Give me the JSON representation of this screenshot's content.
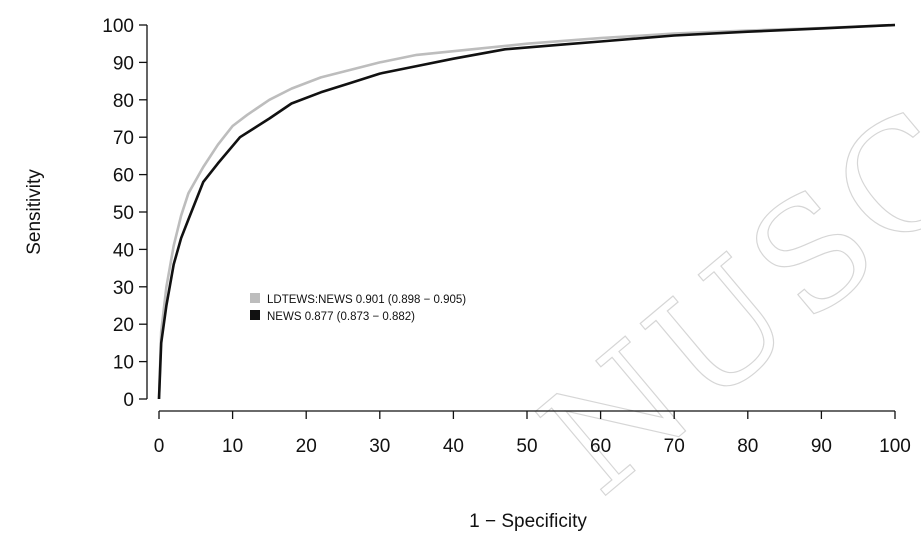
{
  "watermark": "NUSC",
  "chart_data": {
    "type": "line",
    "xlabel": "1 − Specificity",
    "ylabel": "Sensitivity",
    "xlim": [
      0,
      100
    ],
    "ylim": [
      0,
      100
    ],
    "xticks": [
      0,
      10,
      20,
      30,
      40,
      50,
      60,
      70,
      80,
      90,
      100
    ],
    "yticks": [
      0,
      10,
      20,
      30,
      40,
      50,
      60,
      70,
      80,
      90,
      100
    ],
    "grid": false,
    "legend_position": "center-left",
    "series": [
      {
        "name": "LDTEWS:NEWS 0.901 (0.898 − 0.905)",
        "color": "#bdbdbd",
        "x": [
          0,
          0.3,
          1,
          2,
          3,
          4,
          6,
          8,
          10,
          12,
          15,
          18,
          22,
          26,
          30,
          35,
          40,
          50,
          60,
          70,
          80,
          90,
          100
        ],
        "y": [
          0,
          18,
          30,
          41,
          49,
          55,
          62,
          68,
          73,
          76,
          80,
          83,
          86,
          88,
          90,
          92,
          93,
          95,
          96.5,
          97.7,
          98.5,
          99.2,
          100
        ]
      },
      {
        "name": "NEWS 0.877 (0.873 − 0.882)",
        "color": "#111111",
        "x": [
          0,
          0.3,
          1,
          2,
          3,
          4,
          6,
          8,
          11,
          15,
          18,
          22,
          26,
          30,
          35,
          40,
          47,
          55,
          60,
          70,
          80,
          90,
          100
        ],
        "y": [
          0,
          15,
          25,
          36,
          43,
          48,
          58,
          63,
          70,
          75,
          79,
          82,
          84.5,
          87,
          89,
          91,
          93.5,
          94.8,
          95.6,
          97.2,
          98.2,
          99.1,
          100
        ]
      }
    ]
  }
}
